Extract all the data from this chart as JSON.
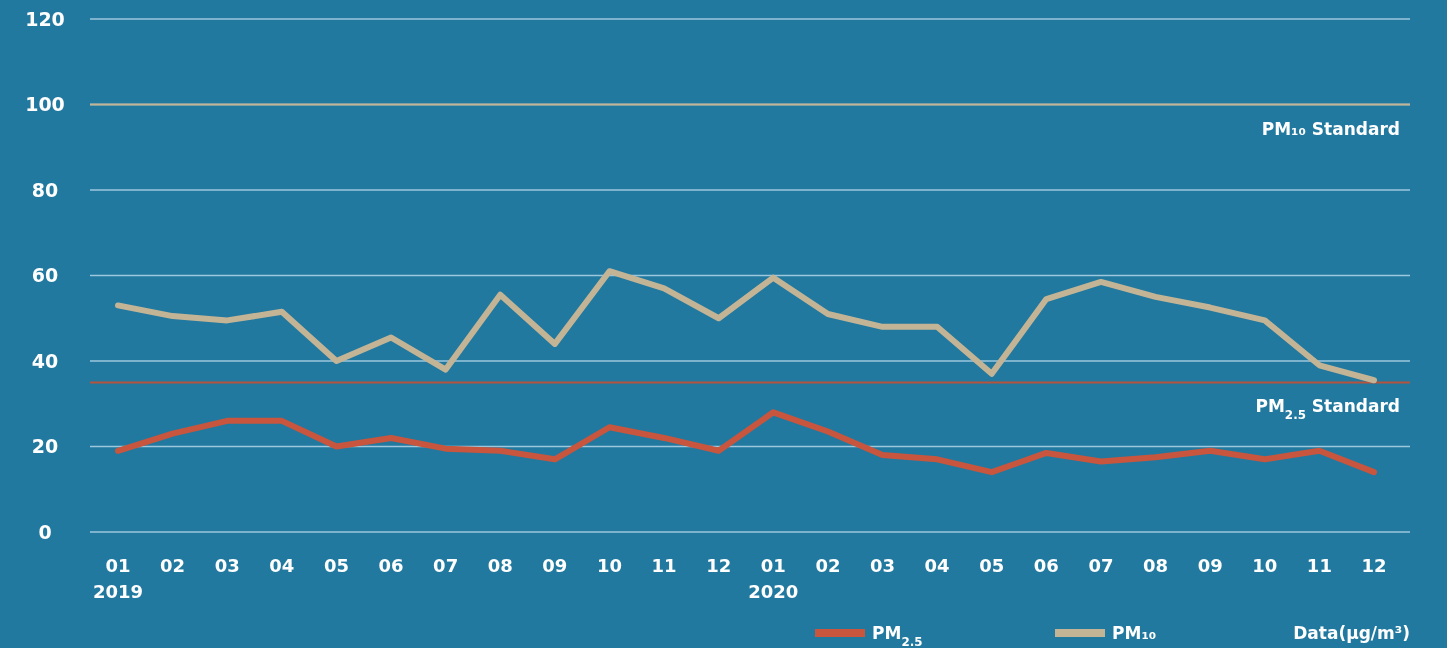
{
  "chart_data": {
    "type": "line",
    "categories": [
      "01\n2019",
      "02",
      "03",
      "04",
      "05",
      "06",
      "07",
      "08",
      "09",
      "10",
      "11",
      "12",
      "01\n2020",
      "02",
      "03",
      "04",
      "05",
      "06",
      "07",
      "08",
      "09",
      "10",
      "11",
      "12"
    ],
    "series": [
      {
        "name": "PM$_{2.5}$",
        "color": "#c8553d",
        "values": [
          19,
          23,
          26,
          26,
          20,
          22,
          19.5,
          19,
          17,
          24.5,
          22,
          19,
          28,
          23.5,
          18,
          17,
          14,
          18.5,
          16.5,
          17.5,
          19,
          17,
          19,
          14
        ]
      },
      {
        "name": "PM₁₀",
        "color": "#c4b496",
        "values": [
          53,
          50.5,
          49.5,
          51.5,
          40,
          45.5,
          38,
          55.5,
          44,
          61,
          57,
          50,
          59.5,
          51,
          48,
          48,
          37,
          54.5,
          58.5,
          55,
          52.5,
          49.5,
          39,
          35.5
        ]
      }
    ],
    "ylim": [
      0,
      120
    ],
    "yticks": [
      0,
      20,
      40,
      60,
      80,
      100,
      120
    ],
    "grid": "y",
    "legend": "bottom right",
    "marker": "none",
    "line_style": "solid",
    "ref_lines": [
      {
        "axis": "y",
        "value": 100,
        "label": "PM₁₀ Standard",
        "color": "#c4b496"
      },
      {
        "axis": "y",
        "value": 35,
        "label": "PM$_{2.5}$ Standard",
        "color": "#b5533c"
      }
    ],
    "annotations": [
      "Data(μg/m³)"
    ]
  }
}
